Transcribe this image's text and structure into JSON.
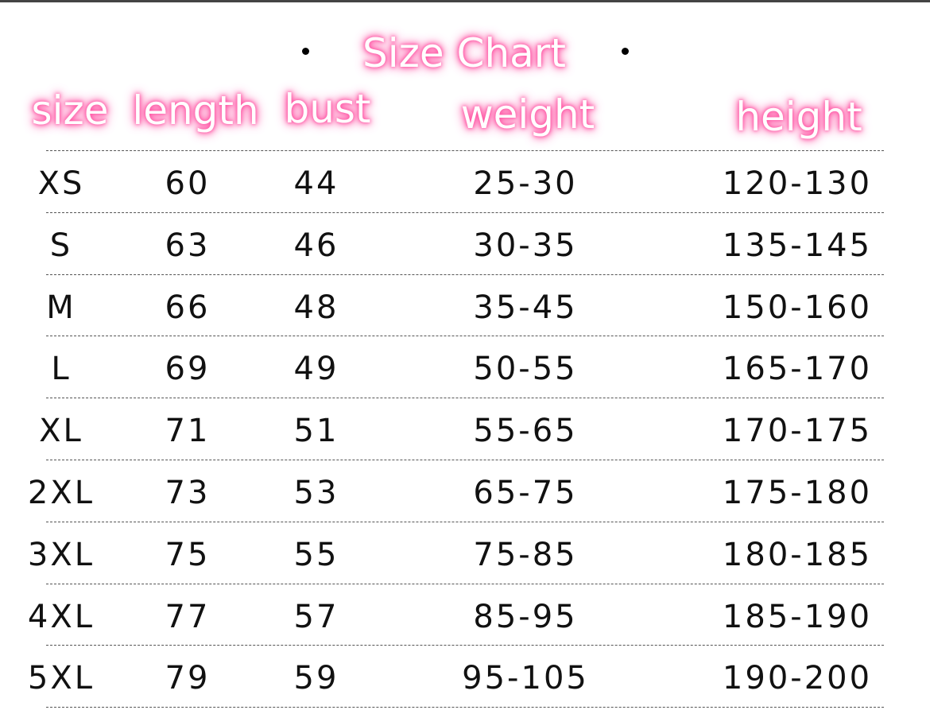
{
  "chart_data": {
    "type": "table",
    "title": "Size Chart",
    "columns": [
      "size",
      "length",
      "bust",
      "weight",
      "height"
    ],
    "rows": [
      [
        "XS",
        "60",
        "44",
        "25-30",
        "120-130"
      ],
      [
        "S",
        "63",
        "46",
        "30-35",
        "135-145"
      ],
      [
        "M",
        "66",
        "48",
        "35-45",
        "150-160"
      ],
      [
        "L",
        "69",
        "49",
        "50-55",
        "165-170"
      ],
      [
        "XL",
        "71",
        "51",
        "55-65",
        "170-175"
      ],
      [
        "2XL",
        "73",
        "53",
        "65-75",
        "175-180"
      ],
      [
        "3XL",
        "75",
        "55",
        "75-85",
        "180-185"
      ],
      [
        "4XL",
        "77",
        "57",
        "85-95",
        "185-190"
      ],
      [
        "5XL",
        "79",
        "59",
        "95-105",
        "190-200"
      ]
    ],
    "header_glow_color": "#ff4fa0"
  }
}
